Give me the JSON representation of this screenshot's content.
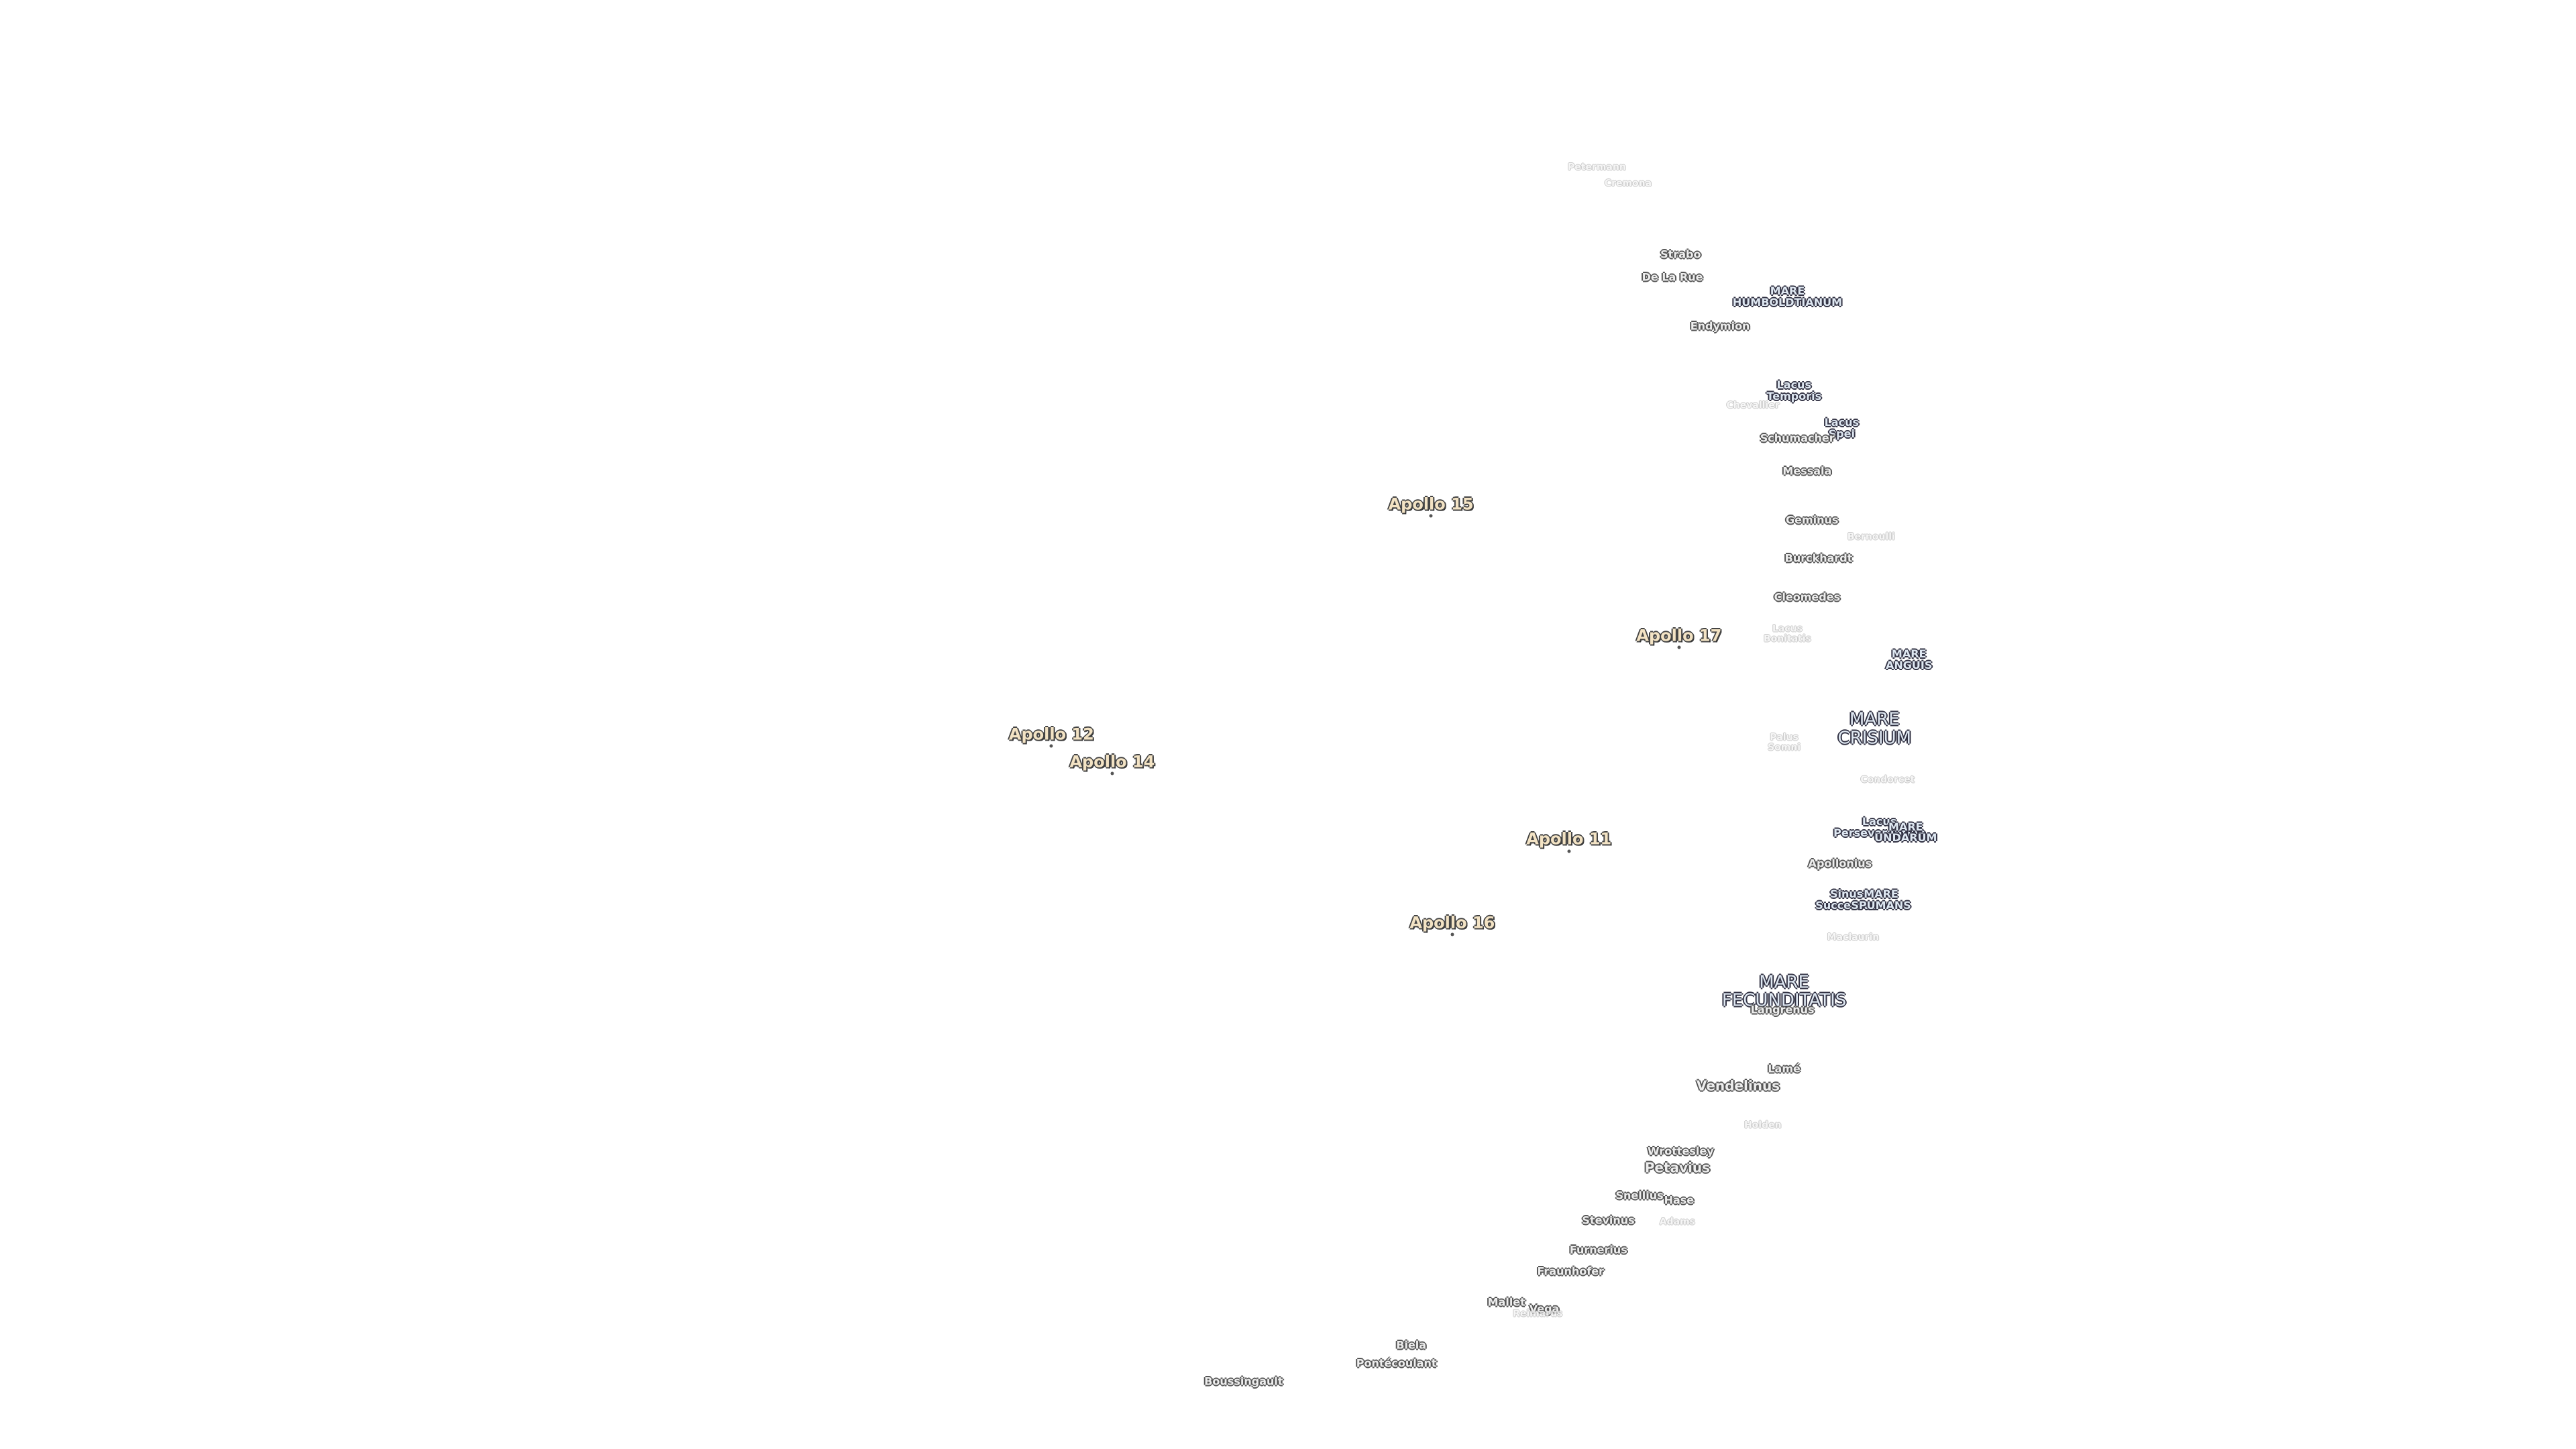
{
  "landing_sites": [
    "Apollo 15",
    "Apollo 17",
    "Apollo 12",
    "Apollo 14",
    "Apollo 11",
    "Apollo 16"
  ],
  "maria": [
    [
      "MARE",
      "HUMBOLDTIANUM"
    ],
    [
      "Lacus",
      "Temporis"
    ],
    [
      "Lacus",
      "Spei"
    ],
    [
      "MARE",
      "ANGUIS"
    ],
    [
      "MARE",
      "CRISIUM"
    ],
    [
      "Lacus",
      "Perseverantiae"
    ],
    [
      "MARE",
      "UNDARUM"
    ],
    [
      "Sinus",
      "Successus"
    ],
    [
      "MARE",
      "SPUMANS"
    ],
    [
      "MARE",
      "FECUNDITATIS"
    ]
  ],
  "craters": [
    "Strabo",
    "De La Rue",
    "Endymion",
    "Schumacher",
    "Messala",
    "Geminus",
    "Burckhardt",
    "Cleomedes",
    "Apollonius",
    "Langrenus",
    "Lamé",
    "Vendelinus",
    "Wrottesley",
    "Petavius",
    "Snellius",
    "Hase",
    "Stevinus",
    "Furnerius",
    "Fraunhofer",
    "Mallet",
    "Vega",
    "Biela",
    "Pontécoulant",
    "Boussingault"
  ],
  "faint_labels": [
    "Petermann",
    "Cremona",
    "Chevallier",
    "Bernoulli",
    [
      "Lacus",
      "Bonitatis"
    ],
    [
      "Palus",
      "Somni"
    ],
    "Condorcet",
    "Maclaurin",
    "Holden",
    "Adams",
    "Reimarus"
  ]
}
